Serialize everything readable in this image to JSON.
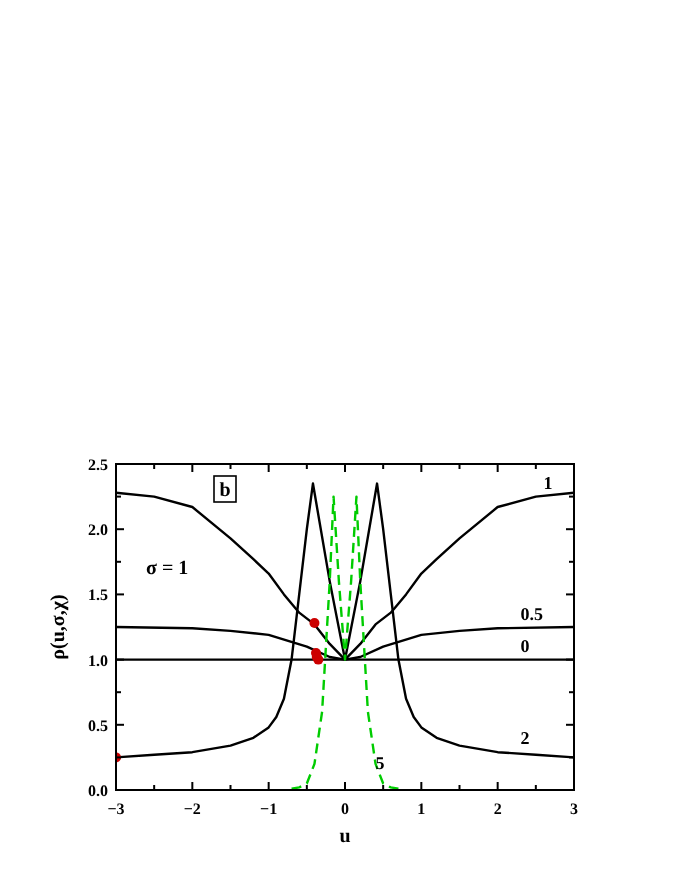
{
  "chart_data": {
    "type": "line",
    "xlabel": "u",
    "ylabel": "ρ(u,σ,χ)",
    "xlim": [
      -3,
      3
    ],
    "ylim": [
      0,
      2.5
    ],
    "xticks": [
      {
        "value": -3,
        "label": "−3"
      },
      {
        "value": -2.5,
        "label": null
      },
      {
        "value": -2,
        "label": "−2"
      },
      {
        "value": -1.5,
        "label": null
      },
      {
        "value": -1,
        "label": "−1"
      },
      {
        "value": -0.5,
        "label": null
      },
      {
        "value": 0,
        "label": "0"
      },
      {
        "value": 0.5,
        "label": null
      },
      {
        "value": 1,
        "label": "1"
      },
      {
        "value": 1.5,
        "label": null
      },
      {
        "value": 2,
        "label": "2"
      },
      {
        "value": 2.5,
        "label": null
      },
      {
        "value": 3,
        "label": "3"
      }
    ],
    "yticks": [
      {
        "value": 0,
        "label": "0.0"
      },
      {
        "value": 0.25,
        "label": null
      },
      {
        "value": 0.5,
        "label": "0.5"
      },
      {
        "value": 0.75,
        "label": null
      },
      {
        "value": 1,
        "label": "1.0"
      },
      {
        "value": 1.25,
        "label": null
      },
      {
        "value": 1.5,
        "label": "1.5"
      },
      {
        "value": 1.75,
        "label": null
      },
      {
        "value": 2,
        "label": "2.0"
      },
      {
        "value": 2.25,
        "label": null
      },
      {
        "value": 2.5,
        "label": "2.5"
      }
    ],
    "grid": false,
    "series": [
      {
        "color": "#000000",
        "line_style": "solid",
        "x": [
          -3,
          -2.5,
          -2,
          -1.5,
          -1.2,
          -1,
          -0.8,
          -0.6,
          -0.4,
          -0.2,
          0,
          0.2,
          0.4,
          0.6,
          0.8,
          1,
          1.2,
          1.5,
          2,
          2.5,
          3
        ],
        "values": [
          2.28,
          2.25,
          2.17,
          1.93,
          1.77,
          1.66,
          1.5,
          1.36,
          1.27,
          1.12,
          1,
          1.12,
          1.27,
          1.36,
          1.5,
          1.66,
          1.77,
          1.93,
          2.17,
          2.25,
          2.28
        ]
      },
      {
        "color": "#000000",
        "line_style": "solid",
        "x": [
          -3,
          -2,
          -1.5,
          -1,
          -0.5,
          -0.2,
          0,
          0.2,
          0.5,
          1,
          1.5,
          2,
          3
        ],
        "values": [
          1.25,
          1.24,
          1.22,
          1.19,
          1.1,
          1.02,
          1,
          1.02,
          1.1,
          1.19,
          1.22,
          1.24,
          1.25
        ]
      },
      {
        "color": "#000000",
        "line_style": "solid",
        "x": [
          -3,
          3
        ],
        "values": [
          1,
          1
        ]
      },
      {
        "color": "#000000",
        "line_style": "solid",
        "x": [
          -3,
          -2.5,
          -2,
          -1.5,
          -1.2,
          -1,
          -0.9,
          -0.8,
          -0.7,
          -0.6,
          -0.5,
          -0.42,
          -0.2,
          0,
          0.2,
          0.42,
          0.5,
          0.6,
          0.7,
          0.8,
          0.9,
          1,
          1.2,
          1.5,
          2,
          2.5,
          3
        ],
        "values": [
          0.25,
          0.27,
          0.29,
          0.34,
          0.4,
          0.48,
          0.56,
          0.7,
          1,
          1.5,
          2,
          2.35,
          1.6,
          1,
          1.6,
          2.35,
          2,
          1.5,
          1,
          0.7,
          0.56,
          0.48,
          0.4,
          0.34,
          0.29,
          0.27,
          0.25
        ]
      },
      {
        "color": "#00cc00",
        "line_style": "dashed",
        "x": [
          -0.7,
          -0.6,
          -0.5,
          -0.4,
          -0.3,
          -0.26,
          -0.2,
          -0.15,
          -0.08,
          0,
          0.08,
          0.15,
          0.2,
          0.26,
          0.3,
          0.4,
          0.5,
          0.6,
          0.7
        ],
        "values": [
          0.01,
          0.02,
          0.05,
          0.2,
          0.6,
          1,
          1.6,
          2.25,
          1.6,
          1,
          1.6,
          2.25,
          1.6,
          1,
          0.6,
          0.2,
          0.05,
          0.02,
          0.01
        ]
      },
      {
        "type": "scatter",
        "marker": "circle",
        "color": "#cc0000",
        "x": [
          -3,
          -0.4,
          -0.38,
          -0.37,
          -0.35
        ],
        "values": [
          0.25,
          1.28,
          1.05,
          1.02,
          1.0
        ]
      }
    ],
    "annotations": [
      "b",
      "σ = 1",
      {
        "text": "1",
        "x": 2.6,
        "y": 2.25
      },
      {
        "text": "0.5",
        "x": 2.3,
        "y": 1.24
      },
      {
        "text": "0",
        "x": 2.3,
        "y": 1
      },
      {
        "text": "2",
        "x": 2.3,
        "y": 0.29
      },
      {
        "text": "5",
        "x": 0.4,
        "y": 0.1
      }
    ]
  }
}
